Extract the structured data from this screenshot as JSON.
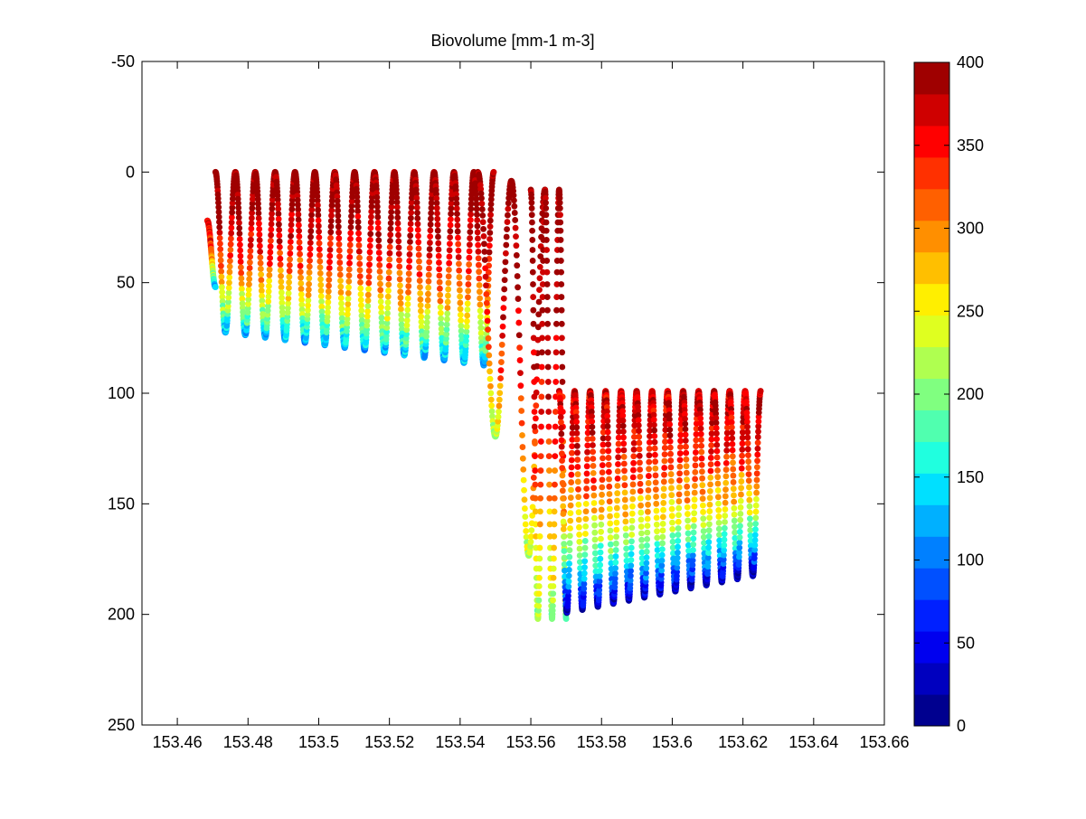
{
  "chart_data": {
    "type": "scatter",
    "title": "Biovolume [mm-1 m-3]",
    "xlabel": "",
    "ylabel": "",
    "xlim": [
      153.45,
      153.66
    ],
    "ylim": [
      -50,
      250
    ],
    "y_reversed": true,
    "x_ticks": [
      153.46,
      153.48,
      153.5,
      153.52,
      153.54,
      153.56,
      153.58,
      153.6,
      153.62,
      153.64,
      153.66
    ],
    "x_tick_labels": [
      "153.46",
      "153.48",
      "153.5",
      "153.52",
      "153.54",
      "153.56",
      "153.58",
      "153.6",
      "153.62",
      "153.64",
      "153.66"
    ],
    "y_ticks": [
      -50,
      0,
      50,
      100,
      150,
      200,
      250
    ],
    "y_tick_labels": [
      "-50",
      "0",
      "50",
      "100",
      "150",
      "200",
      "250"
    ],
    "grid": false,
    "colorbar": {
      "label": "",
      "range": [
        0,
        400
      ],
      "ticks": [
        0,
        50,
        100,
        150,
        200,
        250,
        300,
        350,
        400
      ],
      "tick_labels": [
        "0",
        "50",
        "100",
        "150",
        "200",
        "250",
        "300",
        "350",
        "400"
      ],
      "colors": [
        "#00008f",
        "#0000bf",
        "#0000ef",
        "#0020ff",
        "#0050ff",
        "#0080ff",
        "#00b0ff",
        "#00e0ff",
        "#20ffdf",
        "#50ffaf",
        "#80ff80",
        "#afff50",
        "#dfff20",
        "#ffef00",
        "#ffbf00",
        "#ff8f00",
        "#ff6000",
        "#ff3000",
        "#ff0000",
        "#cf0000",
        "#9f0000"
      ]
    },
    "tracks": [
      {
        "x0": 153.4685,
        "x1": 153.4708,
        "top": 22,
        "bottom": 52,
        "cycles": 0.5,
        "val_top": 360,
        "val_bottom": 120
      },
      {
        "x0": 153.4708,
        "x1": 153.5495,
        "top": 0,
        "bottom": 75,
        "cycles": 14,
        "val_top": 400,
        "val_bottom": 120,
        "bottom_start": 72,
        "bottom_end": 88
      },
      {
        "x0": 153.545,
        "x1": 153.564,
        "top": 0,
        "bottom": 118,
        "cycles": 2,
        "val_top": 400,
        "val_bottom": 220,
        "top_start": 0,
        "top_end": 8,
        "bottom_start": 92,
        "bottom_end": 200
      },
      {
        "x0": 153.56,
        "x1": 153.57,
        "top": 8,
        "bottom": 202,
        "cycles": 2.5,
        "val_top": 400,
        "val_bottom": 200
      },
      {
        "x0": 153.568,
        "x1": 153.625,
        "top": 99,
        "bottom": 185,
        "cycles": 13,
        "val_top": 370,
        "val_bottom": 20,
        "bottom_start": 200,
        "bottom_end": 182
      }
    ]
  }
}
